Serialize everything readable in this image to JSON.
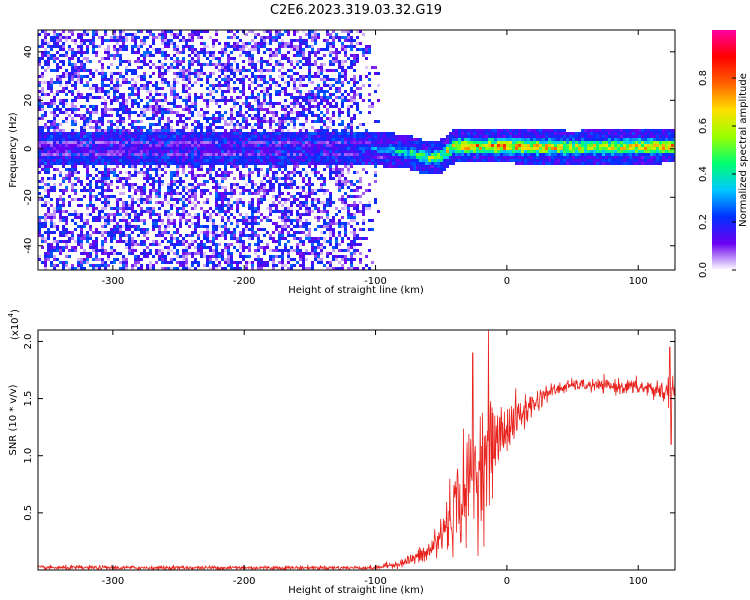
{
  "figure_title": "C2E6.2023.319.03.32.G19",
  "chart_data": [
    {
      "type": "heatmap",
      "title": "",
      "xlabel": "Height of straight line (km)",
      "ylabel": "Frequency (Hz)",
      "xlim": [
        -357,
        128
      ],
      "ylim": [
        -50,
        49
      ],
      "xticks": [
        -300,
        -200,
        -100,
        0,
        100
      ],
      "xtick_labels": [
        "-300",
        "-200",
        "-100",
        "0",
        "100"
      ],
      "yticks": [
        -40,
        -20,
        0,
        20,
        40
      ],
      "ytick_labels": [
        "-40",
        "-20",
        "0",
        "20",
        "40"
      ],
      "colorbar": {
        "label": "Normalized spectral amplitude",
        "range": [
          0,
          1
        ],
        "ticks": [
          0.0,
          0.2,
          0.4,
          0.6,
          0.8
        ],
        "tick_labels": [
          "0.0",
          "0.2",
          "0.4",
          "0.6",
          "0.8"
        ],
        "colormap_stops": [
          "#ffffff",
          "#6a00f0",
          "#0030ff",
          "#00c8ff",
          "#00ff70",
          "#9aff00",
          "#ffe000",
          "#ff6000",
          "#ff0000",
          "#ff00a0"
        ]
      },
      "noise_region_x": [
        -357,
        -95
      ],
      "signal_trace": [
        {
          "x": -357,
          "freq": 0
        },
        {
          "x": -100,
          "freq": 0
        },
        {
          "x": -80,
          "freq": -1
        },
        {
          "x": -70,
          "freq": -2
        },
        {
          "x": -60,
          "freq": -4
        },
        {
          "x": -50,
          "freq": -3
        },
        {
          "x": -40,
          "freq": 1
        },
        {
          "x": -30,
          "freq": 1
        },
        {
          "x": 0,
          "freq": 1
        },
        {
          "x": 50,
          "freq": 0.5
        },
        {
          "x": 128,
          "freq": 1
        }
      ],
      "signal_amplitude": [
        {
          "x": -357,
          "amp": 0.15
        },
        {
          "x": -120,
          "amp": 0.2
        },
        {
          "x": -95,
          "amp": 0.35
        },
        {
          "x": -70,
          "amp": 0.55
        },
        {
          "x": -45,
          "amp": 0.7
        },
        {
          "x": -30,
          "amp": 0.85
        },
        {
          "x": 0,
          "amp": 0.9
        },
        {
          "x": 60,
          "amp": 0.75
        },
        {
          "x": 128,
          "amp": 0.85
        }
      ]
    },
    {
      "type": "line",
      "title": "",
      "xlabel": "Height of straight line (km)",
      "ylabel": "SNR (10 * v/v)",
      "scale_note": "(x10",
      "scale_exp": "4",
      "scale_close": ")",
      "xlim": [
        -357,
        128
      ],
      "ylim": [
        0,
        2.1
      ],
      "xticks": [
        -300,
        -200,
        -100,
        0,
        100
      ],
      "xtick_labels": [
        "-300",
        "-200",
        "-100",
        "0",
        "100"
      ],
      "yticks": [
        0.5,
        1.0,
        1.5,
        2.0
      ],
      "ytick_labels": [
        "0.5",
        "1.0",
        "1.5",
        "2.0"
      ],
      "color": "#e8221c",
      "envelope": [
        {
          "x": -357,
          "mean": 0.02,
          "noise": 0.015
        },
        {
          "x": -100,
          "mean": 0.02,
          "noise": 0.015
        },
        {
          "x": -80,
          "mean": 0.06,
          "noise": 0.03
        },
        {
          "x": -60,
          "mean": 0.15,
          "noise": 0.08
        },
        {
          "x": -50,
          "mean": 0.3,
          "noise": 0.2
        },
        {
          "x": -40,
          "mean": 0.55,
          "noise": 0.3
        },
        {
          "x": -30,
          "mean": 0.7,
          "noise": 0.4
        },
        {
          "x": -20,
          "mean": 0.9,
          "noise": 0.45
        },
        {
          "x": -10,
          "mean": 1.1,
          "noise": 0.3
        },
        {
          "x": 0,
          "mean": 1.25,
          "noise": 0.2
        },
        {
          "x": 10,
          "mean": 1.35,
          "noise": 0.15
        },
        {
          "x": 30,
          "mean": 1.55,
          "noise": 0.06
        },
        {
          "x": 50,
          "mean": 1.62,
          "noise": 0.04
        },
        {
          "x": 100,
          "mean": 1.6,
          "noise": 0.06
        },
        {
          "x": 128,
          "mean": 1.55,
          "noise": 0.1
        }
      ],
      "spikes": [
        {
          "x": -26,
          "value": 1.9
        },
        {
          "x": -14,
          "value": 2.1
        },
        {
          "x": 124,
          "value": 1.95
        },
        {
          "x": 125,
          "value": 1.1
        }
      ]
    }
  ]
}
